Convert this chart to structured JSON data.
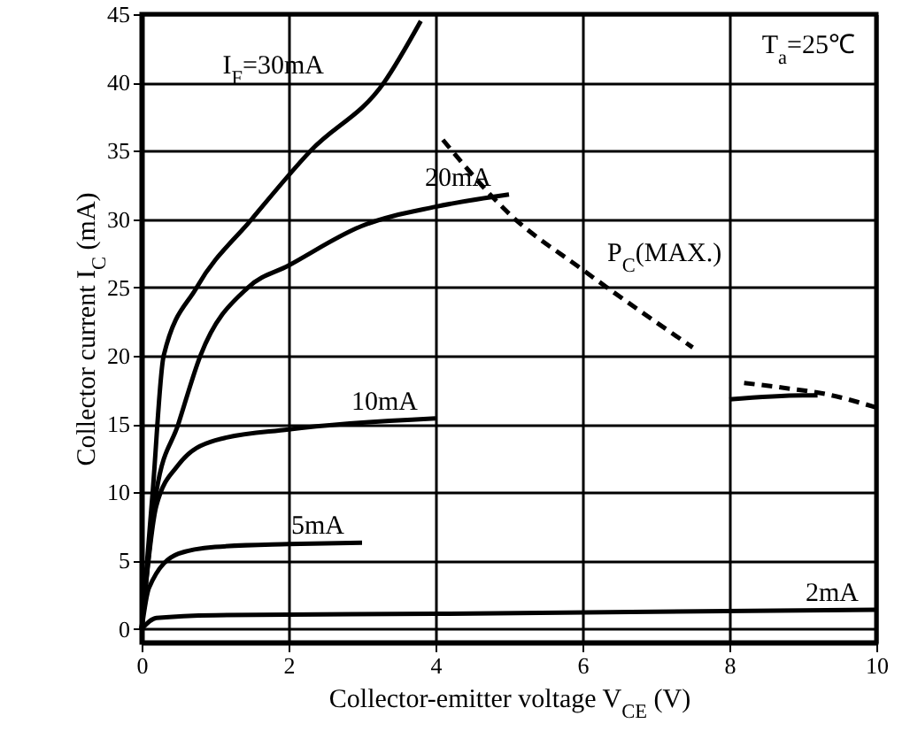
{
  "chart_data": {
    "type": "line",
    "xlabel": "Collector-emitter voltage V$_{CE}$ (V)",
    "ylabel": "Collector current I$_{C}$ (mA)",
    "annotations": [
      "T$_{a}$=25℃"
    ],
    "xlim": [
      0,
      10
    ],
    "xticks": [
      0,
      2,
      4,
      6,
      8,
      10
    ],
    "ylim": [
      -1,
      45
    ],
    "yticks": [
      0,
      5,
      10,
      15,
      20,
      25,
      30,
      35,
      40,
      45
    ],
    "grid": true,
    "legend": false,
    "marker": "none",
    "series": [
      {
        "name": "I$_{F}$=30mA",
        "color": "#000000",
        "line_style": "solid",
        "x": [
          0,
          0.15,
          0.3,
          0.75,
          1.5,
          2.3,
          3.3,
          3.8
        ],
        "values": [
          0,
          10,
          20,
          25,
          30,
          35,
          40,
          44.5
        ]
      },
      {
        "name": "20mA",
        "color": "#000000",
        "line_style": "solid",
        "x": [
          0,
          0.2,
          0.5,
          0.8,
          1.45,
          2,
          3,
          4,
          5
        ],
        "values": [
          0,
          10,
          15,
          20,
          25,
          26.6,
          29.5,
          30.9,
          31.8
        ]
      },
      {
        "name": "10mA",
        "color": "#000000",
        "line_style": "solid",
        "x": [
          0,
          0.2,
          0.5,
          1,
          2,
          4,
          6,
          8,
          9,
          9.2
        ],
        "values": [
          0,
          9,
          12,
          13.8,
          14.6,
          15.4,
          null,
          16.8,
          17.1,
          17.1
        ]
      },
      {
        "name": "5mA",
        "color": "#000000",
        "line_style": "solid",
        "x": [
          0,
          0.1,
          0.5,
          1,
          2,
          3
        ],
        "values": [
          0,
          3,
          5.5,
          6,
          6.2,
          6.3
        ]
      },
      {
        "name": "2mA",
        "color": "#000000",
        "line_style": "solid",
        "x": [
          0,
          0.2,
          1,
          4,
          10
        ],
        "values": [
          0,
          0.8,
          1,
          1.1,
          1.4
        ]
      },
      {
        "name": "P$_{C}$(MAX.)",
        "color": "#000000",
        "line_style": "dashed",
        "x": [
          4.1,
          5,
          6,
          7.5,
          8,
          8.2,
          8.8,
          9.3,
          10
        ],
        "values": [
          35.8,
          30.4,
          26.3,
          20.6,
          null,
          18,
          17.6,
          17.2,
          16.2
        ]
      }
    ]
  }
}
